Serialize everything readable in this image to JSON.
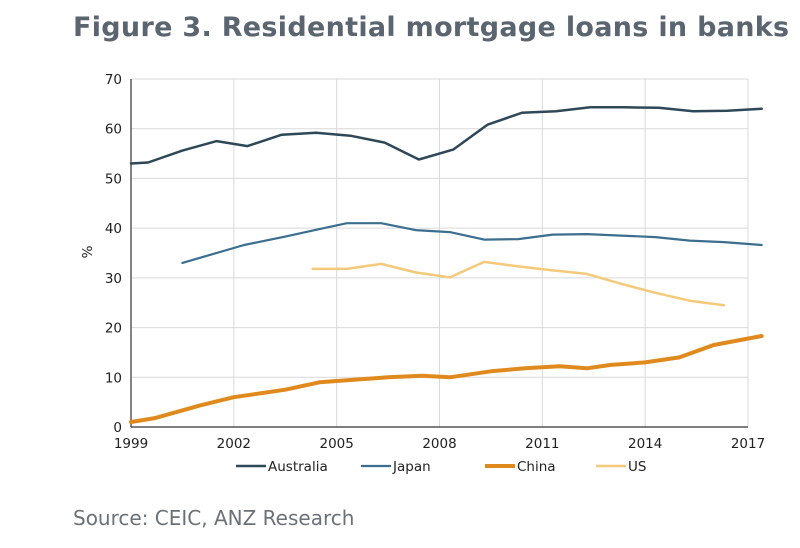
{
  "chart_data": {
    "type": "line",
    "title": "Figure 3. Residential mortgage loans in banks",
    "ylabel": "%",
    "xlabel": "",
    "source": "Source: CEIC, ANZ Research",
    "xlim": [
      1999,
      2017
    ],
    "ylim": [
      0,
      70
    ],
    "x_ticks": [
      1999,
      2002,
      2005,
      2008,
      2011,
      2014,
      2017
    ],
    "y_ticks": [
      0,
      10,
      20,
      30,
      40,
      50,
      60,
      70
    ],
    "grid": true,
    "legend_position": "bottom",
    "series": [
      {
        "name": "Australia",
        "color": "#2f4858",
        "width": 2.5,
        "x": [
          1999,
          1999.5,
          2000.5,
          2001.5,
          2002.4,
          2003.4,
          2004.4,
          2005.4,
          2006.4,
          2007.4,
          2008.4,
          2009.4,
          2010.4,
          2011.4,
          2012.4,
          2013.4,
          2014.4,
          2015.4,
          2016.4,
          2017.4
        ],
        "y": [
          53,
          53.2,
          55.6,
          57.5,
          56.5,
          58.8,
          59.2,
          58.6,
          57.2,
          53.8,
          55.8,
          60.8,
          63.2,
          63.5,
          64.3,
          64.3,
          64.2,
          63.5,
          63.6,
          64
        ]
      },
      {
        "name": "Japan",
        "color": "#3b6e8f",
        "width": 2.2,
        "x": [
          2000.5,
          2002.3,
          2003.5,
          2004.5,
          2005.3,
          2006.3,
          2007.3,
          2008.3,
          2009.3,
          2010.3,
          2011.3,
          2012.3,
          2013.3,
          2014.3,
          2015.3,
          2016.3,
          2017.4
        ],
        "y": [
          33,
          36.6,
          38.3,
          39.8,
          41,
          41,
          39.6,
          39.2,
          37.7,
          37.8,
          38.7,
          38.8,
          38.5,
          38.2,
          37.5,
          37.2,
          36.6
        ]
      },
      {
        "name": "China",
        "color": "#e08a1e",
        "width": 4,
        "x": [
          1999,
          1999.7,
          2001,
          2002,
          2003.5,
          2004.5,
          2005.5,
          2006.5,
          2007.5,
          2008.3,
          2009.5,
          2010.5,
          2011.5,
          2012.3,
          2013,
          2014,
          2015,
          2016,
          2017.4
        ],
        "y": [
          1,
          1.8,
          4.3,
          6,
          7.5,
          9,
          9.5,
          10,
          10.3,
          10,
          11.2,
          11.8,
          12.2,
          11.8,
          12.5,
          13,
          14,
          16.5,
          18.3
        ]
      },
      {
        "name": "US",
        "color": "#f5c97a",
        "width": 2.5,
        "x": [
          2004.3,
          2005.3,
          2006.3,
          2007.3,
          2008.3,
          2009.3,
          2010.3,
          2011.3,
          2012.3,
          2013.3,
          2014.3,
          2015.3,
          2016.3
        ],
        "y": [
          31.8,
          31.8,
          32.8,
          31.1,
          30.1,
          33.2,
          32.3,
          31.5,
          30.8,
          28.8,
          27,
          25.4,
          24.5
        ]
      }
    ]
  }
}
